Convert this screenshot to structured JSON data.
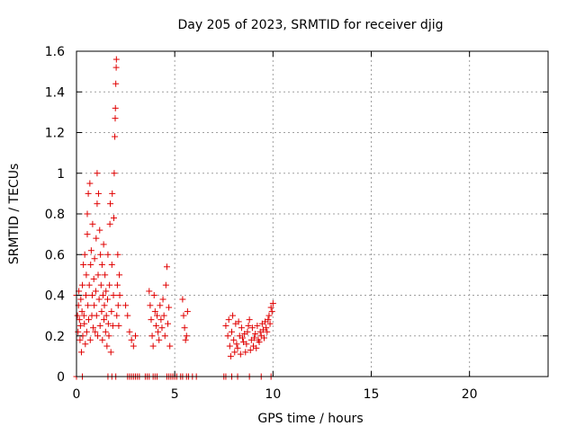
{
  "chart_data": {
    "type": "scatter",
    "title": "Day 205 of 2023, SRMTID for receiver djig",
    "xlabel": "GPS time / hours",
    "ylabel": "SRMTID / TECUs",
    "xlim": [
      0,
      24
    ],
    "ylim": [
      0,
      1.6
    ],
    "xticks": [
      0,
      5,
      10,
      15,
      20
    ],
    "yticks": [
      0,
      0.2,
      0.4,
      0.6,
      0.8,
      1,
      1.2,
      1.4,
      1.6
    ],
    "xtick_labels": [
      "0",
      "5",
      "10",
      "15",
      "20"
    ],
    "ytick_labels": [
      "0",
      "0.2",
      "0.4",
      "0.6",
      "0.8",
      "1",
      "1.2",
      "1.4",
      "1.6"
    ],
    "grid": true,
    "marker": "+",
    "color": "#e00000",
    "series": [
      {
        "name": "SRMTID",
        "points": [
          [
            0.0,
            0.4
          ],
          [
            0.05,
            0.3
          ],
          [
            0.08,
            0.22
          ],
          [
            0.1,
            0.35
          ],
          [
            0.12,
            0.42
          ],
          [
            0.15,
            0.28
          ],
          [
            0.18,
            0.18
          ],
          [
            0.2,
            0.25
          ],
          [
            0.22,
            0.38
          ],
          [
            0.25,
            0.12
          ],
          [
            0.28,
            0.32
          ],
          [
            0.3,
            0.45
          ],
          [
            0.32,
            0.2
          ],
          [
            0.35,
            0.55
          ],
          [
            0.38,
            0.3
          ],
          [
            0.4,
            0.26
          ],
          [
            0.42,
            0.6
          ],
          [
            0.45,
            0.16
          ],
          [
            0.48,
            0.4
          ],
          [
            0.5,
            0.5
          ],
          [
            0.52,
            0.22
          ],
          [
            0.55,
            0.7
          ],
          [
            0.55,
            0.8
          ],
          [
            0.58,
            0.35
          ],
          [
            0.6,
            0.9
          ],
          [
            0.62,
            0.28
          ],
          [
            0.65,
            0.45
          ],
          [
            0.68,
            0.95
          ],
          [
            0.7,
            0.18
          ],
          [
            0.72,
            0.55
          ],
          [
            0.75,
            0.62
          ],
          [
            0.78,
            0.3
          ],
          [
            0.8,
            0.4
          ],
          [
            0.82,
            0.75
          ],
          [
            0.85,
            0.24
          ],
          [
            0.88,
            0.48
          ],
          [
            0.9,
            0.35
          ],
          [
            0.92,
            0.58
          ],
          [
            0.95,
            0.22
          ],
          [
            0.98,
            0.42
          ],
          [
            1.0,
            0.68
          ],
          [
            1.02,
            0.3
          ],
          [
            1.05,
            0.85
          ],
          [
            1.05,
            1.0
          ],
          [
            1.08,
            0.2
          ],
          [
            1.1,
            0.5
          ],
          [
            1.12,
            0.9
          ],
          [
            1.15,
            0.38
          ],
          [
            1.18,
            0.72
          ],
          [
            1.2,
            0.25
          ],
          [
            1.22,
            0.6
          ],
          [
            1.25,
            0.45
          ],
          [
            1.28,
            0.32
          ],
          [
            1.3,
            0.55
          ],
          [
            1.32,
            0.18
          ],
          [
            1.35,
            0.4
          ],
          [
            1.38,
            0.65
          ],
          [
            1.4,
            0.28
          ],
          [
            1.42,
            0.35
          ],
          [
            1.45,
            0.5
          ],
          [
            1.48,
            0.22
          ],
          [
            1.5,
            0.42
          ],
          [
            1.52,
            0.3
          ],
          [
            1.55,
            0.15
          ],
          [
            1.58,
            0.38
          ],
          [
            1.6,
            0.6
          ],
          [
            1.62,
            0.26
          ],
          [
            1.65,
            0.2
          ],
          [
            1.68,
            0.45
          ],
          [
            1.7,
            0.75
          ],
          [
            1.72,
            0.85
          ],
          [
            1.75,
            0.12
          ],
          [
            1.78,
            0.32
          ],
          [
            1.8,
            0.55
          ],
          [
            1.82,
            0.9
          ],
          [
            1.85,
            0.25
          ],
          [
            1.88,
            0.4
          ],
          [
            1.9,
            0.78
          ],
          [
            1.92,
            1.0
          ],
          [
            1.95,
            1.18
          ],
          [
            1.97,
            1.27
          ],
          [
            1.98,
            1.32
          ],
          [
            2.0,
            1.44
          ],
          [
            2.02,
            1.52
          ],
          [
            2.03,
            1.56
          ],
          [
            2.05,
            0.3
          ],
          [
            2.08,
            0.45
          ],
          [
            2.1,
            0.6
          ],
          [
            2.12,
            0.35
          ],
          [
            2.15,
            0.25
          ],
          [
            2.18,
            0.5
          ],
          [
            2.2,
            0.4
          ],
          [
            0.0,
            0.0
          ],
          [
            0.3,
            0.0
          ],
          [
            1.6,
            0.0
          ],
          [
            1.8,
            0.0
          ],
          [
            2.0,
            0.0
          ],
          [
            2.6,
            0.0
          ],
          [
            2.7,
            0.0
          ],
          [
            2.8,
            0.0
          ],
          [
            2.9,
            0.0
          ],
          [
            3.0,
            0.0
          ],
          [
            3.1,
            0.0
          ],
          [
            3.2,
            0.0
          ],
          [
            3.5,
            0.0
          ],
          [
            3.6,
            0.0
          ],
          [
            3.7,
            0.0
          ],
          [
            3.9,
            0.0
          ],
          [
            4.0,
            0.0
          ],
          [
            4.1,
            0.0
          ],
          [
            4.6,
            0.0
          ],
          [
            4.7,
            0.0
          ],
          [
            4.8,
            0.0
          ],
          [
            4.9,
            0.0
          ],
          [
            5.0,
            0.0
          ],
          [
            5.1,
            0.0
          ],
          [
            5.3,
            0.0
          ],
          [
            5.4,
            0.0
          ],
          [
            5.6,
            0.0
          ],
          [
            5.7,
            0.0
          ],
          [
            5.9,
            0.0
          ],
          [
            6.1,
            0.0
          ],
          [
            7.5,
            0.0
          ],
          [
            7.6,
            0.0
          ],
          [
            7.9,
            0.0
          ],
          [
            8.2,
            0.0
          ],
          [
            8.8,
            0.0
          ],
          [
            9.4,
            0.0
          ],
          [
            9.9,
            0.0
          ],
          [
            2.5,
            0.35
          ],
          [
            2.6,
            0.3
          ],
          [
            2.7,
            0.22
          ],
          [
            2.8,
            0.18
          ],
          [
            2.9,
            0.15
          ],
          [
            3.0,
            0.2
          ],
          [
            3.7,
            0.42
          ],
          [
            3.75,
            0.35
          ],
          [
            3.8,
            0.28
          ],
          [
            3.85,
            0.2
          ],
          [
            3.9,
            0.15
          ],
          [
            3.95,
            0.4
          ],
          [
            4.0,
            0.32
          ],
          [
            4.05,
            0.25
          ],
          [
            4.1,
            0.3
          ],
          [
            4.15,
            0.22
          ],
          [
            4.2,
            0.18
          ],
          [
            4.25,
            0.35
          ],
          [
            4.3,
            0.28
          ],
          [
            4.35,
            0.24
          ],
          [
            4.4,
            0.38
          ],
          [
            4.45,
            0.3
          ],
          [
            4.5,
            0.2
          ],
          [
            4.55,
            0.45
          ],
          [
            4.6,
            0.54
          ],
          [
            4.65,
            0.26
          ],
          [
            4.7,
            0.34
          ],
          [
            4.75,
            0.15
          ],
          [
            5.4,
            0.38
          ],
          [
            5.45,
            0.3
          ],
          [
            5.5,
            0.24
          ],
          [
            5.55,
            0.18
          ],
          [
            5.6,
            0.2
          ],
          [
            5.65,
            0.32
          ],
          [
            7.6,
            0.25
          ],
          [
            7.7,
            0.2
          ],
          [
            7.8,
            0.15
          ],
          [
            7.9,
            0.22
          ],
          [
            8.0,
            0.18
          ],
          [
            8.1,
            0.26
          ],
          [
            8.2,
            0.14
          ],
          [
            8.3,
            0.2
          ],
          [
            8.4,
            0.24
          ],
          [
            8.5,
            0.17
          ],
          [
            8.6,
            0.12
          ],
          [
            8.7,
            0.22
          ],
          [
            8.8,
            0.28
          ],
          [
            8.9,
            0.18
          ],
          [
            9.0,
            0.15
          ],
          [
            9.1,
            0.21
          ],
          [
            9.2,
            0.25
          ],
          [
            9.3,
            0.17
          ],
          [
            9.4,
            0.2
          ],
          [
            9.5,
            0.23
          ],
          [
            9.6,
            0.27
          ],
          [
            9.7,
            0.22
          ],
          [
            9.8,
            0.3
          ],
          [
            9.9,
            0.34
          ],
          [
            10.0,
            0.36
          ],
          [
            7.75,
            0.28
          ],
          [
            7.85,
            0.1
          ],
          [
            7.95,
            0.3
          ],
          [
            8.05,
            0.12
          ],
          [
            8.15,
            0.16
          ],
          [
            8.25,
            0.27
          ],
          [
            8.35,
            0.11
          ],
          [
            8.45,
            0.19
          ],
          [
            8.55,
            0.21
          ],
          [
            8.65,
            0.16
          ],
          [
            8.75,
            0.25
          ],
          [
            8.85,
            0.13
          ],
          [
            8.95,
            0.24
          ],
          [
            9.05,
            0.19
          ],
          [
            9.15,
            0.14
          ],
          [
            9.25,
            0.18
          ],
          [
            9.35,
            0.22
          ],
          [
            9.45,
            0.26
          ],
          [
            9.55,
            0.19
          ],
          [
            9.65,
            0.24
          ],
          [
            9.75,
            0.28
          ],
          [
            9.85,
            0.26
          ],
          [
            9.95,
            0.32
          ]
        ]
      }
    ]
  }
}
